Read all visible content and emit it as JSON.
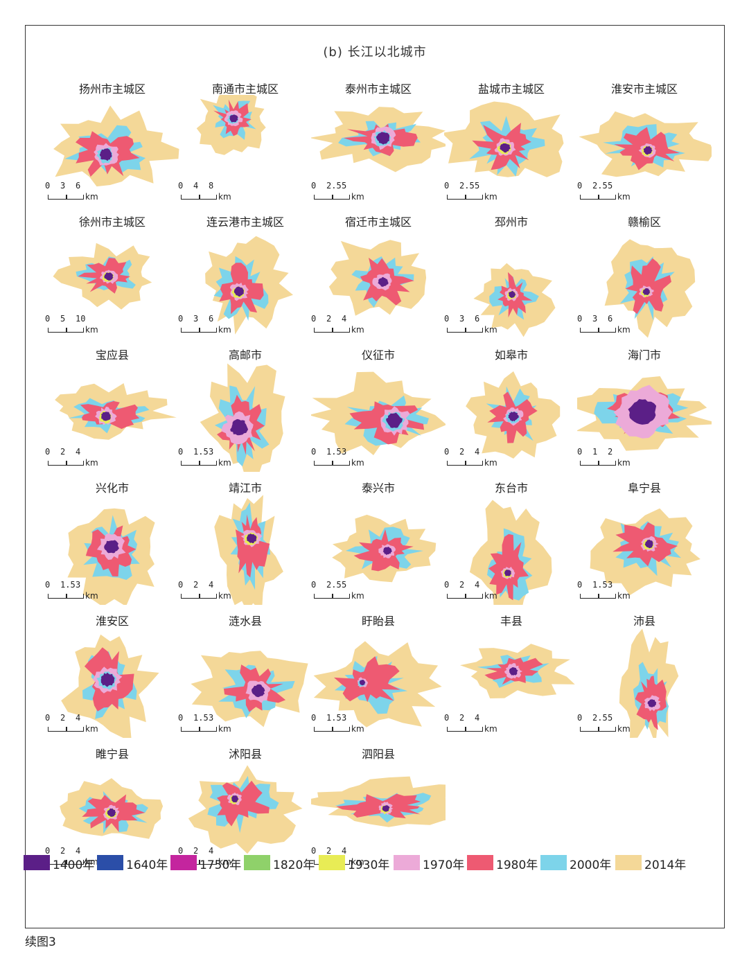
{
  "figure": {
    "title": "(b)  长江以北城市",
    "caption": "续图3"
  },
  "colors": {
    "y1400": "#5b1f87",
    "y1640": "#2b4ea8",
    "y1750": "#c4259e",
    "y1820": "#8fd16a",
    "y1930": "#e8ec55",
    "y1970": "#ecaad8",
    "y1980": "#ee5a72",
    "y2000": "#7dd4ea",
    "y2014": "#f4d898"
  },
  "legend": [
    {
      "label": "1400年",
      "color": "#5b1f87"
    },
    {
      "label": "1640年",
      "color": "#2b4ea8"
    },
    {
      "label": "1750年",
      "color": "#c4259e"
    },
    {
      "label": "1820年",
      "color": "#8fd16a"
    },
    {
      "label": "1930年",
      "color": "#e8ec55"
    },
    {
      "label": "1970年",
      "color": "#ecaad8"
    },
    {
      "label": "1980年",
      "color": "#ee5a72"
    },
    {
      "label": "2000年",
      "color": "#7dd4ea"
    },
    {
      "label": "2014年",
      "color": "#f4d898"
    }
  ],
  "cities": [
    {
      "name": "扬州市主城区",
      "scale": [
        "0",
        "3",
        "6"
      ],
      "unit": "km"
    },
    {
      "name": "南通市主城区",
      "scale": [
        "0",
        "4",
        "8"
      ],
      "unit": "km"
    },
    {
      "name": "泰州市主城区",
      "scale": [
        "0",
        "2.5",
        "5"
      ],
      "unit": "km"
    },
    {
      "name": "盐城市主城区",
      "scale": [
        "0",
        "2.5",
        "5"
      ],
      "unit": "km"
    },
    {
      "name": "淮安市主城区",
      "scale": [
        "0",
        "2.5",
        "5"
      ],
      "unit": "km"
    },
    {
      "name": "徐州市主城区",
      "scale": [
        "0",
        "5",
        "10"
      ],
      "unit": "km"
    },
    {
      "name": "连云港市主城区",
      "scale": [
        "0",
        "3",
        "6"
      ],
      "unit": "km"
    },
    {
      "name": "宿迁市主城区",
      "scale": [
        "0",
        "2",
        "4"
      ],
      "unit": "km"
    },
    {
      "name": "邳州市",
      "scale": [
        "0",
        "3",
        "6"
      ],
      "unit": "km"
    },
    {
      "name": "赣榆区",
      "scale": [
        "0",
        "3",
        "6"
      ],
      "unit": "km"
    },
    {
      "name": "宝应县",
      "scale": [
        "0",
        "2",
        "4"
      ],
      "unit": "km"
    },
    {
      "name": "高邮市",
      "scale": [
        "0",
        "1.5",
        "3"
      ],
      "unit": "km"
    },
    {
      "name": "仪征市",
      "scale": [
        "0",
        "1.5",
        "3"
      ],
      "unit": "km"
    },
    {
      "name": "如皋市",
      "scale": [
        "0",
        "2",
        "4"
      ],
      "unit": "km"
    },
    {
      "name": "海门市",
      "scale": [
        "0",
        "1",
        "2"
      ],
      "unit": "km"
    },
    {
      "name": "兴化市",
      "scale": [
        "0",
        "1.5",
        "3"
      ],
      "unit": "km"
    },
    {
      "name": "靖江市",
      "scale": [
        "0",
        "2",
        "4"
      ],
      "unit": "km"
    },
    {
      "name": "泰兴市",
      "scale": [
        "0",
        "2.5",
        "5"
      ],
      "unit": "km"
    },
    {
      "name": "东台市",
      "scale": [
        "0",
        "2",
        "4"
      ],
      "unit": "km"
    },
    {
      "name": "阜宁县",
      "scale": [
        "0",
        "1.5",
        "3"
      ],
      "unit": "km"
    },
    {
      "name": "淮安区",
      "scale": [
        "0",
        "2",
        "4"
      ],
      "unit": "km"
    },
    {
      "name": "涟水县",
      "scale": [
        "0",
        "1.5",
        "3"
      ],
      "unit": "km"
    },
    {
      "name": "盱眙县",
      "scale": [
        "0",
        "1.5",
        "3"
      ],
      "unit": "km"
    },
    {
      "name": "丰县",
      "scale": [
        "0",
        "2",
        "4"
      ],
      "unit": "km"
    },
    {
      "name": "沛县",
      "scale": [
        "0",
        "2.5",
        "5"
      ],
      "unit": "km"
    },
    {
      "name": "睢宁县",
      "scale": [
        "0",
        "2",
        "4"
      ],
      "unit": "km"
    },
    {
      "name": "沭阳县",
      "scale": [
        "0",
        "2",
        "4"
      ],
      "unit": "km"
    },
    {
      "name": "泗阳县",
      "scale": [
        "0",
        "2",
        "4"
      ],
      "unit": "km"
    }
  ]
}
